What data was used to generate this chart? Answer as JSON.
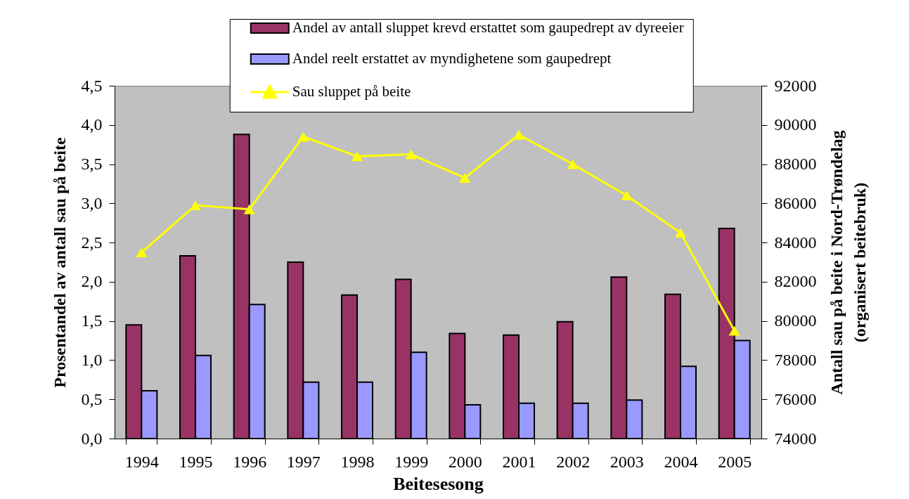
{
  "chart_data": {
    "type": "bar",
    "xlabel": "Beitesesong",
    "ylabel": "Prosentandel av antall sau på beite",
    "y2label": "Antall sau på beite i Nord-Trøndelag\n(organisert beitebruk)",
    "categories": [
      "1994",
      "1995",
      "1996",
      "1997",
      "1998",
      "1999",
      "2000",
      "2001",
      "2002",
      "2003",
      "2004",
      "2005"
    ],
    "series": [
      {
        "name": "Andel av antall sluppet krevd erstattet som gaupedrept av dyreeier",
        "color": "#993366",
        "values": [
          1.45,
          2.33,
          3.88,
          2.25,
          1.83,
          2.03,
          1.34,
          1.32,
          1.49,
          2.06,
          1.84,
          2.68
        ]
      },
      {
        "name": "Andel reelt erstattet av myndighetene som gaupedrept",
        "color": "#9999ff",
        "values": [
          0.61,
          1.06,
          1.71,
          0.72,
          0.72,
          1.1,
          0.43,
          0.45,
          0.45,
          0.49,
          0.92,
          1.25
        ]
      },
      {
        "name": "Sau sluppet på beite",
        "type": "line",
        "axis": "y2",
        "color": "#ffff00",
        "values": [
          83500,
          85900,
          85700,
          89400,
          88400,
          88500,
          87300,
          89500,
          88000,
          86400,
          84500,
          79500
        ]
      }
    ],
    "ylim": [
      0,
      4.5
    ],
    "yticks": [
      {
        "value": 0,
        "label": "0,0"
      },
      {
        "value": 0.5,
        "label": "0,5"
      },
      {
        "value": 1,
        "label": "1,0"
      },
      {
        "value": 1.5,
        "label": "1,5"
      },
      {
        "value": 2,
        "label": "2,0"
      },
      {
        "value": 2.5,
        "label": "2,5"
      },
      {
        "value": 3,
        "label": "3,0"
      },
      {
        "value": 3.5,
        "label": "3,5"
      },
      {
        "value": 4,
        "label": "4,0"
      },
      {
        "value": 4.5,
        "label": "4,5"
      }
    ],
    "y2lim": [
      74000,
      92000
    ],
    "y2ticks": [
      74000,
      76000,
      78000,
      80000,
      82000,
      84000,
      86000,
      88000,
      90000,
      92000
    ],
    "marker": "triangle",
    "legend": "top"
  }
}
